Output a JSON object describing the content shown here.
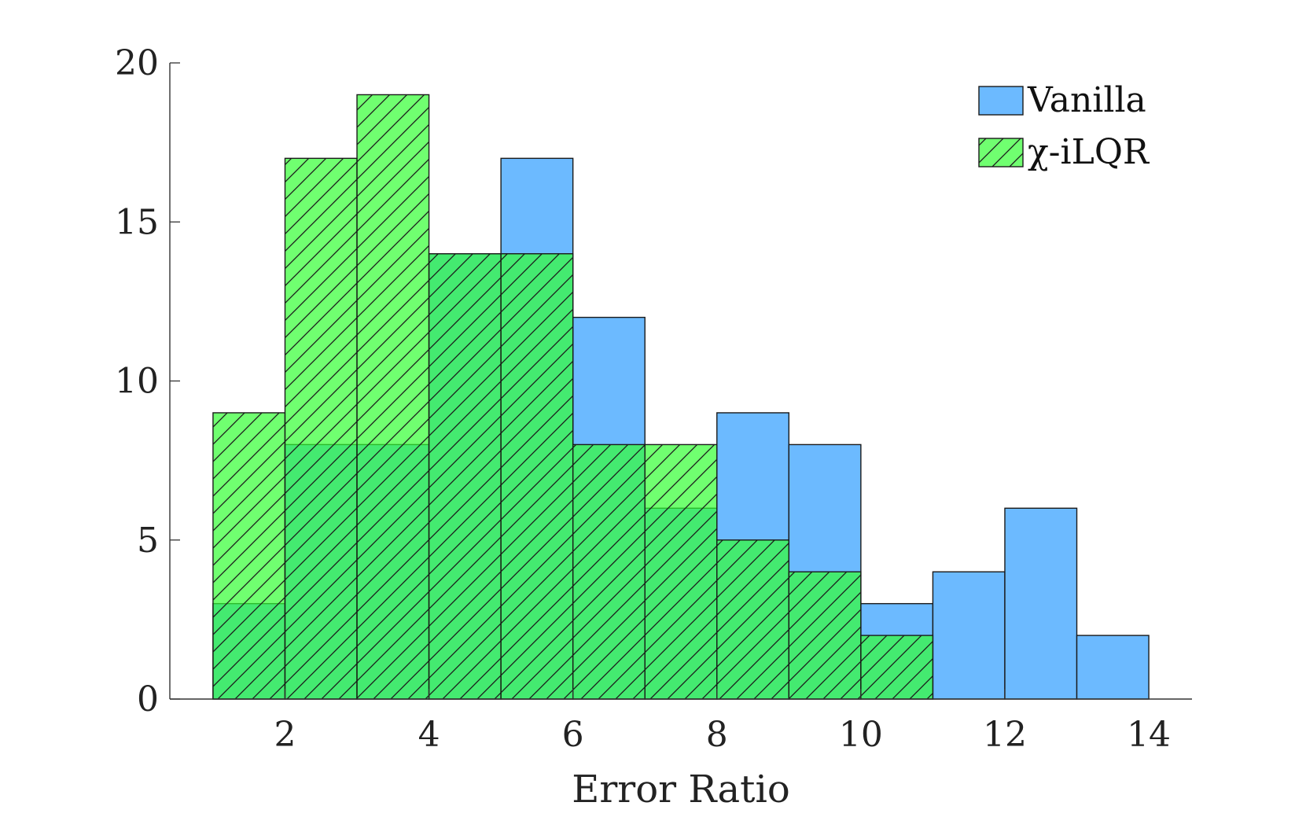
{
  "chart_data": {
    "type": "bar",
    "title": "",
    "xlabel": "Error Ratio",
    "ylabel": "",
    "xlim": [
      0.4,
      14.6
    ],
    "ylim": [
      0,
      20
    ],
    "xticks": [
      2,
      4,
      6,
      8,
      10,
      12,
      14
    ],
    "yticks": [
      0,
      5,
      10,
      15,
      20
    ],
    "grid": false,
    "legend_position": "top-right",
    "bin_edges": [
      1,
      2,
      3,
      4,
      5,
      6,
      7,
      8,
      9,
      10,
      11,
      12,
      13,
      14
    ],
    "series": [
      {
        "name": "Vanilla",
        "color": "#6cbaff",
        "hatch": false,
        "values": [
          3,
          8,
          8,
          14,
          17,
          12,
          6,
          9,
          8,
          3,
          4,
          6,
          2
        ]
      },
      {
        "name": "χ-iLQR",
        "color": "#33ff33",
        "alpha": 0.7,
        "hatch": true,
        "values": [
          9,
          17,
          19,
          14,
          14,
          8,
          8,
          5,
          4,
          2,
          0,
          0,
          0
        ]
      }
    ]
  }
}
